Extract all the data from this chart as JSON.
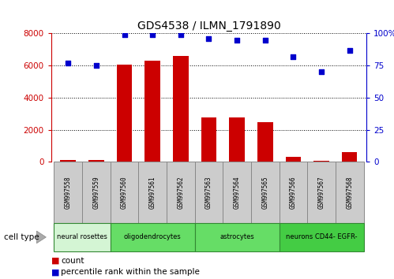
{
  "title": "GDS4538 / ILMN_1791890",
  "samples": [
    "GSM997558",
    "GSM997559",
    "GSM997560",
    "GSM997561",
    "GSM997562",
    "GSM997563",
    "GSM997564",
    "GSM997565",
    "GSM997566",
    "GSM997567",
    "GSM997568"
  ],
  "counts": [
    100,
    100,
    6050,
    6300,
    6600,
    2750,
    2750,
    2450,
    300,
    80,
    600
  ],
  "percentile_ranks": [
    77,
    75,
    99,
    99,
    99,
    96,
    95,
    95,
    82,
    70,
    87
  ],
  "cell_type_regions": [
    {
      "label": "neural rosettes",
      "start": 0,
      "end": 1,
      "color": "#d4f5d4"
    },
    {
      "label": "oligodendrocytes",
      "start": 2,
      "end": 4,
      "color": "#66dd66"
    },
    {
      "label": "astrocytes",
      "start": 5,
      "end": 7,
      "color": "#66dd66"
    },
    {
      "label": "neurons CD44- EGFR-",
      "start": 8,
      "end": 10,
      "color": "#44cc44"
    }
  ],
  "ylim_left": [
    0,
    8000
  ],
  "ylim_right": [
    0,
    100
  ],
  "yticks_left": [
    0,
    2000,
    4000,
    6000,
    8000
  ],
  "yticks_right": [
    0,
    25,
    50,
    75,
    100
  ],
  "bar_color": "#cc0000",
  "dot_color": "#0000cc",
  "bar_width": 0.55,
  "background_color": "#ffffff",
  "sample_box_color": "#cccccc",
  "grid_color": "black",
  "legend_count_color": "#cc0000",
  "legend_dot_color": "#0000cc"
}
